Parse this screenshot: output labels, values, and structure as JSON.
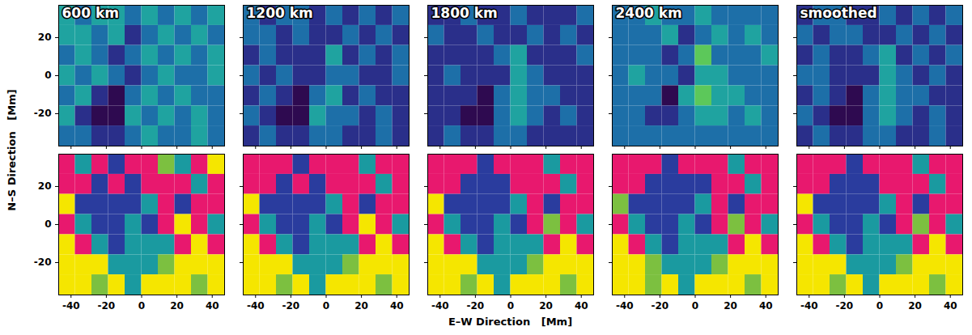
{
  "chart_data": {
    "type": "heatmap",
    "xlabel": "E–W Direction   [Mm]",
    "ylabel": "N–S Direction   [Mm]",
    "xlim": [
      -47,
      47
    ],
    "ylim": [
      -37,
      37
    ],
    "xticks": [
      -40,
      -20,
      0,
      20,
      40
    ],
    "yticks": [
      -20,
      0,
      20
    ],
    "x_edges": [
      -47,
      -37.6,
      -28.2,
      -18.8,
      -9.4,
      0,
      9.4,
      18.8,
      28.2,
      37.6,
      47
    ],
    "y_edges": [
      37,
      26.4,
      15.9,
      5.3,
      -5.3,
      -15.9,
      -26.4,
      -37
    ],
    "rows": [
      {
        "levels": [
          0,
          1,
          2,
          3,
          4,
          5,
          6
        ],
        "colors": [
          "#2e0a50",
          "#2a2f8a",
          "#1d6fa8",
          "#1fa3a0",
          "#5cc85a",
          "#f0e020",
          "#e01f3a"
        ],
        "panels": [
          {
            "title": "600 km",
            "cells": [
              [
                3,
                2,
                3,
                3,
                2,
                3,
                2,
                3,
                2,
                3
              ],
              [
                3,
                3,
                2,
                3,
                1,
                2,
                3,
                2,
                3,
                2
              ],
              [
                2,
                3,
                2,
                1,
                2,
                3,
                2,
                3,
                2,
                3
              ],
              [
                3,
                2,
                3,
                2,
                1,
                2,
                3,
                2,
                2,
                3
              ],
              [
                2,
                3,
                1,
                0,
                2,
                3,
                2,
                3,
                2,
                2
              ],
              [
                3,
                1,
                0,
                0,
                3,
                2,
                3,
                2,
                3,
                2
              ],
              [
                2,
                2,
                1,
                1,
                2,
                3,
                2,
                2,
                3,
                2
              ]
            ]
          },
          {
            "title": "1200 km",
            "cells": [
              [
                2,
                1,
                2,
                2,
                1,
                2,
                1,
                2,
                1,
                2
              ],
              [
                2,
                2,
                1,
                2,
                1,
                1,
                2,
                1,
                2,
                1
              ],
              [
                1,
                2,
                1,
                1,
                1,
                3,
                1,
                2,
                1,
                2
              ],
              [
                2,
                1,
                2,
                1,
                1,
                2,
                2,
                1,
                1,
                2
              ],
              [
                1,
                2,
                1,
                0,
                2,
                3,
                1,
                2,
                1,
                1
              ],
              [
                2,
                1,
                0,
                0,
                3,
                2,
                2,
                1,
                2,
                1
              ],
              [
                1,
                2,
                1,
                1,
                2,
                2,
                1,
                1,
                2,
                1
              ]
            ]
          },
          {
            "title": "1800 km",
            "cells": [
              [
                1,
                1,
                2,
                1,
                1,
                2,
                1,
                1,
                1,
                2
              ],
              [
                2,
                1,
                1,
                2,
                1,
                1,
                2,
                1,
                2,
                1
              ],
              [
                1,
                1,
                1,
                1,
                2,
                3,
                1,
                1,
                1,
                2
              ],
              [
                1,
                2,
                1,
                1,
                1,
                3,
                2,
                1,
                1,
                1
              ],
              [
                1,
                1,
                1,
                0,
                2,
                3,
                2,
                2,
                1,
                1
              ],
              [
                1,
                1,
                0,
                0,
                2,
                3,
                2,
                1,
                2,
                1
              ],
              [
                1,
                2,
                1,
                1,
                2,
                2,
                1,
                1,
                1,
                1
              ]
            ]
          },
          {
            "title": "2400 km",
            "cells": [
              [
                2,
                2,
                3,
                2,
                2,
                3,
                2,
                2,
                2,
                2
              ],
              [
                2,
                2,
                2,
                3,
                1,
                2,
                3,
                2,
                3,
                2
              ],
              [
                2,
                2,
                2,
                1,
                2,
                4,
                2,
                2,
                2,
                3
              ],
              [
                2,
                3,
                2,
                2,
                1,
                3,
                3,
                2,
                2,
                2
              ],
              [
                2,
                2,
                2,
                0,
                3,
                4,
                3,
                3,
                2,
                2
              ],
              [
                2,
                2,
                1,
                1,
                2,
                3,
                3,
                2,
                3,
                2
              ],
              [
                2,
                2,
                2,
                2,
                2,
                2,
                2,
                2,
                2,
                2
              ]
            ]
          },
          {
            "title": "smoothed",
            "cells": [
              [
                1,
                2,
                2,
                1,
                1,
                2,
                1,
                2,
                1,
                2
              ],
              [
                2,
                1,
                2,
                2,
                1,
                1,
                2,
                1,
                2,
                1
              ],
              [
                1,
                2,
                1,
                1,
                2,
                3,
                1,
                2,
                1,
                2
              ],
              [
                2,
                2,
                1,
                1,
                1,
                3,
                2,
                1,
                2,
                1
              ],
              [
                1,
                2,
                1,
                0,
                2,
                3,
                2,
                2,
                1,
                1
              ],
              [
                2,
                1,
                0,
                0,
                2,
                3,
                2,
                1,
                2,
                1
              ],
              [
                1,
                2,
                1,
                1,
                2,
                2,
                1,
                1,
                2,
                1
              ]
            ]
          }
        ]
      },
      {
        "levels": [
          0,
          1,
          2,
          3,
          4
        ],
        "colors": [
          "#e8186e",
          "#2a3c9e",
          "#1a9aa0",
          "#7cc040",
          "#f5e600"
        ],
        "panels": [
          {
            "cells": [
              [
                0,
                2,
                0,
                1,
                0,
                0,
                3,
                2,
                0,
                4
              ],
              [
                0,
                0,
                1,
                0,
                1,
                0,
                0,
                0,
                2,
                0
              ],
              [
                4,
                1,
                1,
                1,
                1,
                2,
                0,
                1,
                0,
                0
              ],
              [
                0,
                2,
                1,
                1,
                2,
                1,
                0,
                4,
                0,
                2
              ],
              [
                4,
                0,
                2,
                1,
                2,
                2,
                2,
                0,
                4,
                0
              ],
              [
                4,
                4,
                4,
                2,
                2,
                2,
                3,
                4,
                4,
                4
              ],
              [
                4,
                4,
                3,
                4,
                2,
                4,
                4,
                4,
                3,
                4
              ]
            ]
          },
          {
            "cells": [
              [
                0,
                0,
                0,
                1,
                0,
                0,
                0,
                2,
                0,
                0
              ],
              [
                0,
                0,
                1,
                0,
                1,
                0,
                0,
                0,
                2,
                0
              ],
              [
                4,
                1,
                1,
                1,
                1,
                2,
                0,
                1,
                0,
                0
              ],
              [
                0,
                2,
                1,
                1,
                2,
                1,
                0,
                4,
                0,
                2
              ],
              [
                4,
                0,
                2,
                1,
                2,
                2,
                2,
                0,
                4,
                0
              ],
              [
                4,
                4,
                4,
                2,
                2,
                2,
                3,
                4,
                4,
                4
              ],
              [
                4,
                4,
                3,
                4,
                2,
                4,
                4,
                4,
                3,
                4
              ]
            ]
          },
          {
            "cells": [
              [
                0,
                0,
                0,
                1,
                0,
                0,
                0,
                2,
                0,
                0
              ],
              [
                0,
                0,
                1,
                1,
                1,
                0,
                0,
                0,
                2,
                0
              ],
              [
                4,
                1,
                1,
                1,
                1,
                2,
                0,
                1,
                0,
                0
              ],
              [
                0,
                2,
                1,
                1,
                2,
                1,
                0,
                3,
                0,
                2
              ],
              [
                4,
                0,
                2,
                1,
                2,
                2,
                2,
                0,
                4,
                0
              ],
              [
                4,
                4,
                4,
                2,
                2,
                2,
                3,
                4,
                4,
                4
              ],
              [
                4,
                4,
                3,
                4,
                2,
                4,
                4,
                4,
                3,
                4
              ]
            ]
          },
          {
            "cells": [
              [
                0,
                0,
                0,
                1,
                0,
                0,
                0,
                2,
                0,
                0
              ],
              [
                0,
                0,
                1,
                1,
                1,
                1,
                0,
                0,
                2,
                0
              ],
              [
                3,
                1,
                1,
                1,
                1,
                2,
                0,
                1,
                0,
                0
              ],
              [
                0,
                2,
                1,
                1,
                2,
                1,
                0,
                3,
                0,
                2
              ],
              [
                4,
                0,
                2,
                1,
                2,
                2,
                2,
                0,
                4,
                0
              ],
              [
                4,
                4,
                3,
                2,
                2,
                2,
                3,
                4,
                4,
                4
              ],
              [
                4,
                4,
                3,
                4,
                2,
                4,
                4,
                4,
                3,
                4
              ]
            ]
          },
          {
            "cells": [
              [
                0,
                0,
                0,
                1,
                0,
                0,
                0,
                2,
                0,
                0
              ],
              [
                0,
                0,
                1,
                1,
                1,
                0,
                0,
                0,
                2,
                0
              ],
              [
                4,
                1,
                1,
                1,
                1,
                2,
                0,
                1,
                0,
                0
              ],
              [
                0,
                2,
                1,
                1,
                2,
                1,
                0,
                3,
                0,
                2
              ],
              [
                4,
                0,
                2,
                1,
                2,
                2,
                2,
                0,
                4,
                0
              ],
              [
                4,
                4,
                4,
                2,
                2,
                2,
                3,
                4,
                4,
                4
              ],
              [
                4,
                4,
                3,
                4,
                2,
                4,
                4,
                4,
                3,
                4
              ]
            ]
          }
        ]
      }
    ]
  }
}
